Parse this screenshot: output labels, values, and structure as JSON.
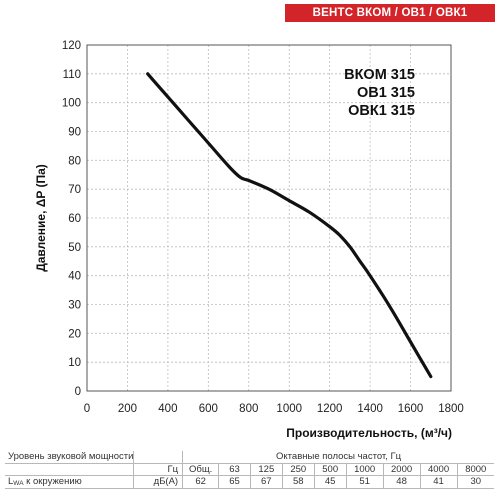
{
  "header": {
    "badge": "ВЕНТС ВКОМ / ОВ1 / ОВК1"
  },
  "models": [
    "ВКОМ 315",
    "ОВ1 315",
    "ОВК1 315"
  ],
  "chart_data": {
    "type": "line",
    "title": "",
    "xlabel": "Производительность, (м³/ч)",
    "ylabel": "Давление, ΔP (Па)",
    "xlim": [
      0,
      1800
    ],
    "ylim": [
      0,
      120
    ],
    "x_ticks": [
      0,
      200,
      400,
      600,
      800,
      1000,
      1200,
      1400,
      1600,
      1800
    ],
    "y_ticks": [
      0,
      10,
      20,
      30,
      40,
      50,
      60,
      70,
      80,
      90,
      100,
      110,
      120
    ],
    "grid": true,
    "series": [
      {
        "name": "",
        "color": "#111111",
        "x": [
          300,
          400,
          500,
          600,
          700,
          760,
          800,
          900,
          1000,
          1100,
          1200,
          1250,
          1300,
          1350,
          1400,
          1500,
          1600,
          1700
        ],
        "y": [
          110,
          102,
          94,
          86,
          78,
          74,
          73,
          70,
          66,
          62,
          57,
          54,
          50,
          45,
          40,
          29,
          17,
          5
        ]
      }
    ]
  },
  "sound_table": {
    "title": "Уровень звуковой мощности",
    "bands_title": "Октавные полосы частот, Гц",
    "hz_unit": "Гц",
    "row_label_main": "L",
    "row_label_sub": "WA",
    "row_label_rest": " к окружению",
    "db_unit": "дБ(А)",
    "columns": [
      "Общ.",
      "63",
      "125",
      "250",
      "500",
      "1000",
      "2000",
      "4000",
      "8000"
    ],
    "values": [
      "62",
      "65",
      "67",
      "58",
      "45",
      "51",
      "48",
      "41",
      "30"
    ]
  }
}
